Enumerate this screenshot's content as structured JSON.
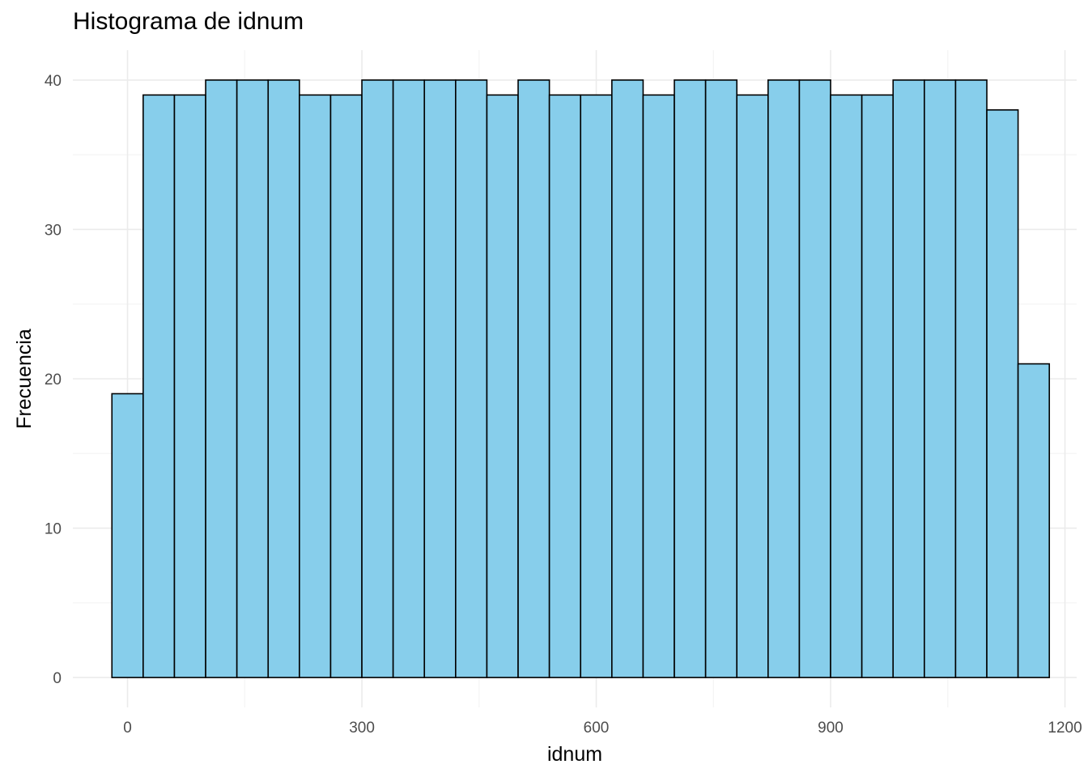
{
  "chart_data": {
    "type": "bar",
    "title": "Histograma de idnum",
    "xlabel": "idnum",
    "ylabel": "Frecuencia",
    "xlim": [
      -70,
      1215
    ],
    "ylim": [
      -2,
      42
    ],
    "x_ticks": [
      0,
      300,
      600,
      900,
      1200
    ],
    "x_tick_labels": [
      "0",
      "300",
      "600",
      "900",
      "1200"
    ],
    "y_ticks": [
      0,
      10,
      20,
      30,
      40
    ],
    "y_tick_labels": [
      "0",
      "10",
      "20",
      "30",
      "40"
    ],
    "grid": true,
    "bin_width": 40,
    "bin_start": -20,
    "bins": [
      {
        "x_start": -20,
        "x_end": 20,
        "count": 19
      },
      {
        "x_start": 20,
        "x_end": 60,
        "count": 39
      },
      {
        "x_start": 60,
        "x_end": 100,
        "count": 39
      },
      {
        "x_start": 100,
        "x_end": 140,
        "count": 40
      },
      {
        "x_start": 140,
        "x_end": 180,
        "count": 40
      },
      {
        "x_start": 180,
        "x_end": 220,
        "count": 40
      },
      {
        "x_start": 220,
        "x_end": 260,
        "count": 39
      },
      {
        "x_start": 260,
        "x_end": 300,
        "count": 39
      },
      {
        "x_start": 300,
        "x_end": 340,
        "count": 40
      },
      {
        "x_start": 340,
        "x_end": 380,
        "count": 40
      },
      {
        "x_start": 380,
        "x_end": 420,
        "count": 40
      },
      {
        "x_start": 420,
        "x_end": 460,
        "count": 40
      },
      {
        "x_start": 460,
        "x_end": 500,
        "count": 39
      },
      {
        "x_start": 500,
        "x_end": 540,
        "count": 40
      },
      {
        "x_start": 540,
        "x_end": 580,
        "count": 39
      },
      {
        "x_start": 580,
        "x_end": 620,
        "count": 39
      },
      {
        "x_start": 620,
        "x_end": 660,
        "count": 40
      },
      {
        "x_start": 660,
        "x_end": 700,
        "count": 39
      },
      {
        "x_start": 700,
        "x_end": 740,
        "count": 40
      },
      {
        "x_start": 740,
        "x_end": 780,
        "count": 40
      },
      {
        "x_start": 780,
        "x_end": 820,
        "count": 39
      },
      {
        "x_start": 820,
        "x_end": 860,
        "count": 40
      },
      {
        "x_start": 860,
        "x_end": 900,
        "count": 40
      },
      {
        "x_start": 900,
        "x_end": 940,
        "count": 39
      },
      {
        "x_start": 940,
        "x_end": 980,
        "count": 39
      },
      {
        "x_start": 980,
        "x_end": 1020,
        "count": 40
      },
      {
        "x_start": 1020,
        "x_end": 1060,
        "count": 40
      },
      {
        "x_start": 1060,
        "x_end": 1100,
        "count": 40
      },
      {
        "x_start": 1100,
        "x_end": 1140,
        "count": 38
      },
      {
        "x_start": 1140,
        "x_end": 1180,
        "count": 21
      }
    ],
    "colors": {
      "bar_fill": "#87ceeb",
      "bar_stroke": "#000000",
      "grid_major": "#ebebeb",
      "grid_minor": "#f4f4f4",
      "tick_text": "#4d4d4d"
    }
  }
}
